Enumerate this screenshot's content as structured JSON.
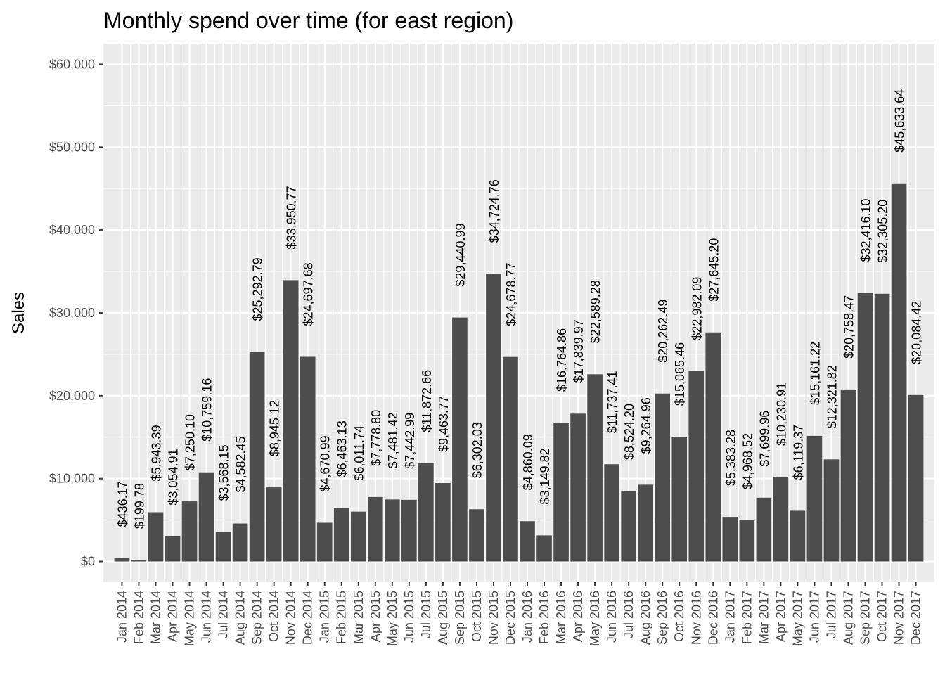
{
  "chart_data": {
    "type": "bar",
    "title": "Monthly spend over time (for east region)",
    "xlabel": "",
    "ylabel": "Sales",
    "ylim": [
      -2500,
      62500
    ],
    "y_ticks": [
      0,
      10000,
      20000,
      30000,
      40000,
      50000,
      60000
    ],
    "y_tick_labels": [
      "$0",
      "$10,000",
      "$20,000",
      "$30,000",
      "$40,000",
      "$50,000",
      "$60,000"
    ],
    "grid": true,
    "legend": "none",
    "colors": {
      "bar": "#4d4d4d",
      "panel": "#ebebeb",
      "grid": "#ffffff"
    },
    "categories": [
      "Jan 2014",
      "Feb 2014",
      "Mar 2014",
      "Apr 2014",
      "May 2014",
      "Jun 2014",
      "Jul 2014",
      "Aug 2014",
      "Sep 2014",
      "Oct 2014",
      "Nov 2014",
      "Dec 2014",
      "Jan 2015",
      "Feb 2015",
      "Mar 2015",
      "Apr 2015",
      "May 2015",
      "Jun 2015",
      "Jul 2015",
      "Aug 2015",
      "Sep 2015",
      "Oct 2015",
      "Nov 2015",
      "Dec 2015",
      "Jan 2016",
      "Feb 2016",
      "Mar 2016",
      "Apr 2016",
      "May 2016",
      "Jun 2016",
      "Jul 2016",
      "Aug 2016",
      "Sep 2016",
      "Oct 2016",
      "Nov 2016",
      "Dec 2016",
      "Jan 2017",
      "Feb 2017",
      "Mar 2017",
      "Apr 2017",
      "May 2017",
      "Jun 2017",
      "Jul 2017",
      "Aug 2017",
      "Sep 2017",
      "Oct 2017",
      "Nov 2017",
      "Dec 2017"
    ],
    "x_dates": [
      "2014-01",
      "2014-02",
      "2014-03",
      "2014-04",
      "2014-05",
      "2014-06",
      "2014-07",
      "2014-08",
      "2014-09",
      "2014-10",
      "2014-11",
      "2014-12",
      "2015-01",
      "2015-02",
      "2015-03",
      "2015-04",
      "2015-05",
      "2015-06",
      "2015-07",
      "2015-08",
      "2015-09",
      "2015-10",
      "2015-11",
      "2015-12",
      "2016-01",
      "2016-02",
      "2016-03",
      "2016-04",
      "2016-05",
      "2016-06",
      "2016-07",
      "2016-08",
      "2016-09",
      "2016-10",
      "2016-11",
      "2016-12",
      "2017-01",
      "2017-02",
      "2017-03",
      "2017-04",
      "2017-05",
      "2017-06",
      "2017-07",
      "2017-08",
      "2017-09",
      "2017-10",
      "2017-11",
      "2017-12"
    ],
    "values": [
      436.17,
      199.78,
      5943.39,
      3054.91,
      7250.1,
      10759.16,
      3568.15,
      4582.45,
      25292.79,
      8945.12,
      33950.77,
      24697.68,
      4670.99,
      6463.13,
      6011.74,
      7778.8,
      7481.42,
      7442.99,
      11872.66,
      9463.77,
      29440.99,
      6302.03,
      34724.76,
      24678.77,
      4860.09,
      3149.82,
      16764.86,
      17839.97,
      22589.28,
      11737.41,
      8524.2,
      9264.96,
      20262.49,
      15065.46,
      22982.09,
      27645.2,
      5383.28,
      4968.52,
      7699.96,
      10230.91,
      6119.37,
      15161.22,
      12321.82,
      20758.47,
      32416.1,
      32305.2,
      45633.64,
      20084.42
    ],
    "value_labels": [
      "$436.17",
      "$199.78",
      "$5,943.39",
      "$3,054.91",
      "$7,250.10",
      "$10,759.16",
      "$3,568.15",
      "$4,582.45",
      "$25,292.79",
      "$8,945.12",
      "$33,950.77",
      "$24,697.68",
      "$4,670.99",
      "$6,463.13",
      "$6,011.74",
      "$7,778.80",
      "$7,481.42",
      "$7,442.99",
      "$11,872.66",
      "$9,463.77",
      "$29,440.99",
      "$6,302.03",
      "$34,724.76",
      "$24,678.77",
      "$4,860.09",
      "$3,149.82",
      "$16,764.86",
      "$17,839.97",
      "$22,589.28",
      "$11,737.41",
      "$8,524.20",
      "$9,264.96",
      "$20,262.49",
      "$15,065.46",
      "$22,982.09",
      "$27,645.20",
      "$5,383.28",
      "$4,968.52",
      "$7,699.96",
      "$10,230.91",
      "$6,119.37",
      "$15,161.22",
      "$12,321.82",
      "$20,758.47",
      "$32,416.10",
      "$32,305.20",
      "$45,633.64",
      "$20,084.42"
    ]
  }
}
